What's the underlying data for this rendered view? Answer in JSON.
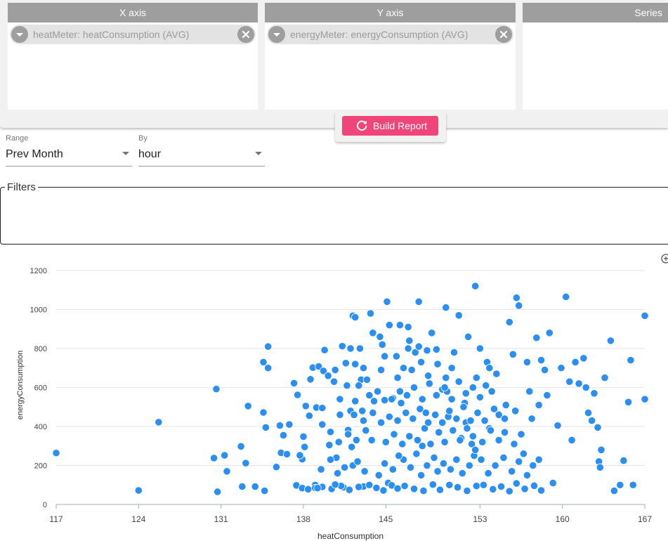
{
  "axes": {
    "x": {
      "title": "X axis",
      "field": "heatMeter: heatConsumption (AVG)"
    },
    "y": {
      "title": "Y axis",
      "field": "energyMeter: energyConsumption (AVG)"
    },
    "series": {
      "title": "Series"
    }
  },
  "build_button": {
    "label": "Build Report",
    "color": "#f0457b",
    "icon": "refresh-icon"
  },
  "range": {
    "label": "Range",
    "value": "Prev Month"
  },
  "by": {
    "label": "By",
    "value": "hour"
  },
  "filters": {
    "label": "Filters"
  },
  "chart_data": {
    "type": "scatter",
    "xlabel": "heatConsumption",
    "ylabel": "energyConsumption",
    "xlim": [
      117,
      167
    ],
    "ylim": [
      0,
      1200
    ],
    "x_ticks": [
      117,
      124,
      131,
      138,
      145,
      153,
      160,
      167
    ],
    "y_ticks": [
      0,
      200,
      400,
      600,
      800,
      1000,
      1200
    ],
    "grid": "horizontal",
    "color": "#2b8ff2",
    "points": [
      [
        117.0,
        264
      ],
      [
        124.0,
        72
      ],
      [
        125.7,
        422
      ],
      [
        130.6,
        592
      ],
      [
        130.4,
        238
      ],
      [
        130.7,
        65
      ],
      [
        131.3,
        252
      ],
      [
        131.5,
        170
      ],
      [
        132.7,
        298
      ],
      [
        132.8,
        92
      ],
      [
        133.1,
        212
      ],
      [
        133.3,
        505
      ],
      [
        133.9,
        92
      ],
      [
        134.6,
        730
      ],
      [
        134.6,
        472
      ],
      [
        134.8,
        395
      ],
      [
        135.0,
        700
      ],
      [
        135.0,
        810
      ],
      [
        134.7,
        70
      ],
      [
        135.7,
        192
      ],
      [
        136.0,
        405
      ],
      [
        136.1,
        265
      ],
      [
        136.3,
        355
      ],
      [
        136.6,
        258
      ],
      [
        136.8,
        410
      ],
      [
        137.2,
        622
      ],
      [
        137.4,
        98
      ],
      [
        137.5,
        562
      ],
      [
        137.9,
        84
      ],
      [
        137.9,
        232
      ],
      [
        137.7,
        252
      ],
      [
        138.1,
        295
      ],
      [
        138.0,
        348
      ],
      [
        138.2,
        505
      ],
      [
        138.4,
        78
      ],
      [
        138.6,
        642
      ],
      [
        138.5,
        455
      ],
      [
        138.8,
        702
      ],
      [
        139.0,
        100
      ],
      [
        139.0,
        85
      ],
      [
        139.1,
        497
      ],
      [
        139.3,
        708
      ],
      [
        139.6,
        495
      ],
      [
        139.6,
        410
      ],
      [
        139.7,
        685
      ],
      [
        139.8,
        792
      ],
      [
        140.1,
        660
      ],
      [
        140.2,
        305
      ],
      [
        140.3,
        372
      ],
      [
        140.4,
        80
      ],
      [
        140.6,
        630
      ],
      [
        140.7,
        690
      ],
      [
        140.8,
        240
      ],
      [
        141.3,
        812
      ],
      [
        141.1,
        540
      ],
      [
        141.1,
        460
      ],
      [
        141.4,
        88
      ],
      [
        141.6,
        725
      ],
      [
        141.7,
        610
      ],
      [
        141.8,
        382
      ],
      [
        142.0,
        800
      ],
      [
        142.1,
        295
      ],
      [
        142.0,
        480
      ],
      [
        142.2,
        968
      ],
      [
        142.2,
        200
      ],
      [
        142.4,
        960
      ],
      [
        142.4,
        530
      ],
      [
        142.8,
        800
      ],
      [
        142.9,
        640
      ],
      [
        143.0,
        480
      ],
      [
        143.1,
        92
      ],
      [
        143.4,
        640
      ],
      [
        143.7,
        980
      ],
      [
        143.9,
        880
      ],
      [
        144.0,
        530
      ],
      [
        144.5,
        860
      ],
      [
        144.7,
        820
      ],
      [
        144.9,
        535
      ],
      [
        145.1,
        1040
      ],
      [
        145.3,
        920
      ],
      [
        145.6,
        545
      ],
      [
        146.2,
        920
      ],
      [
        146.3,
        520
      ],
      [
        146.9,
        910
      ],
      [
        147.0,
        840
      ],
      [
        147.5,
        780
      ],
      [
        147.8,
        1040
      ],
      [
        148.1,
        300
      ],
      [
        148.4,
        470
      ],
      [
        148.9,
        880
      ],
      [
        149.3,
        795
      ],
      [
        149.8,
        590
      ],
      [
        150.1,
        1010
      ],
      [
        150.2,
        580
      ],
      [
        150.3,
        450
      ],
      [
        150.6,
        700
      ],
      [
        150.8,
        780
      ],
      [
        151.2,
        970
      ],
      [
        151.4,
        340
      ],
      [
        151.7,
        520
      ],
      [
        151.8,
        420
      ],
      [
        152.0,
        860
      ],
      [
        152.3,
        310
      ],
      [
        152.5,
        250
      ],
      [
        152.6,
        280
      ],
      [
        152.6,
        1120
      ],
      [
        153.0,
        800
      ],
      [
        153.6,
        730
      ],
      [
        153.8,
        390
      ],
      [
        154.0,
        580
      ],
      [
        154.4,
        670
      ],
      [
        154.6,
        460
      ],
      [
        155.2,
        510
      ],
      [
        155.5,
        935
      ],
      [
        155.8,
        770
      ],
      [
        156.1,
        1060
      ],
      [
        156.3,
        1020
      ],
      [
        156.7,
        260
      ],
      [
        157.0,
        730
      ],
      [
        157.2,
        580
      ],
      [
        157.4,
        440
      ],
      [
        157.8,
        855
      ],
      [
        158.0,
        510
      ],
      [
        158.2,
        740
      ],
      [
        158.5,
        690
      ],
      [
        158.7,
        560
      ],
      [
        158.9,
        880
      ],
      [
        159.2,
        110
      ],
      [
        159.6,
        405
      ],
      [
        159.9,
        700
      ],
      [
        160.3,
        1065
      ],
      [
        160.6,
        630
      ],
      [
        160.8,
        330
      ],
      [
        161.1,
        730
      ],
      [
        161.4,
        620
      ],
      [
        161.8,
        750
      ],
      [
        162.0,
        600
      ],
      [
        162.2,
        470
      ],
      [
        162.5,
        430
      ],
      [
        162.7,
        570
      ],
      [
        163.0,
        395
      ],
      [
        163.1,
        220
      ],
      [
        163.2,
        190
      ],
      [
        163.3,
        280
      ],
      [
        163.6,
        650
      ],
      [
        164.1,
        840
      ],
      [
        164.4,
        70
      ],
      [
        164.9,
        100
      ],
      [
        165.2,
        225
      ],
      [
        165.6,
        525
      ],
      [
        165.8,
        740
      ],
      [
        166.0,
        100
      ],
      [
        167.0,
        968
      ],
      [
        167.0,
        540
      ],
      [
        145.2,
        110
      ],
      [
        146.6,
        95
      ],
      [
        147.4,
        80
      ],
      [
        148.2,
        70
      ],
      [
        149.0,
        102
      ],
      [
        149.6,
        75
      ],
      [
        150.4,
        100
      ],
      [
        151.1,
        88
      ],
      [
        151.9,
        70
      ],
      [
        152.7,
        95
      ],
      [
        153.3,
        100
      ],
      [
        154.1,
        78
      ],
      [
        154.8,
        92
      ],
      [
        155.5,
        68
      ],
      [
        156.1,
        108
      ],
      [
        156.8,
        80
      ],
      [
        157.6,
        96
      ],
      [
        158.2,
        72
      ],
      [
        143.6,
        100
      ],
      [
        144.2,
        85
      ],
      [
        144.8,
        72
      ],
      [
        145.5,
        98
      ],
      [
        146.0,
        82
      ],
      [
        142.7,
        90
      ],
      [
        141.9,
        75
      ],
      [
        141.2,
        95
      ],
      [
        140.7,
        102
      ],
      [
        139.6,
        90
      ],
      [
        139.2,
        84
      ],
      [
        146.5,
        230
      ],
      [
        147.1,
        190
      ],
      [
        147.6,
        260
      ],
      [
        148.0,
        150
      ],
      [
        148.5,
        200
      ],
      [
        149.1,
        240
      ],
      [
        149.4,
        170
      ],
      [
        149.9,
        210
      ],
      [
        150.5,
        180
      ],
      [
        151.0,
        230
      ],
      [
        151.5,
        160
      ],
      [
        152.1,
        200
      ],
      [
        153.1,
        230
      ],
      [
        153.7,
        160
      ],
      [
        154.3,
        200
      ],
      [
        155.0,
        240
      ],
      [
        155.7,
        170
      ],
      [
        156.3,
        220
      ],
      [
        157.0,
        150
      ],
      [
        157.5,
        200
      ],
      [
        158.0,
        230
      ],
      [
        144.4,
        150
      ],
      [
        144.9,
        210
      ],
      [
        145.6,
        180
      ],
      [
        146.1,
        250
      ],
      [
        143.2,
        170
      ],
      [
        142.6,
        220
      ],
      [
        141.5,
        190
      ],
      [
        140.9,
        160
      ],
      [
        140.3,
        230
      ],
      [
        139.5,
        180
      ],
      [
        145.0,
        320
      ],
      [
        145.7,
        360
      ],
      [
        146.4,
        310
      ],
      [
        147.0,
        350
      ],
      [
        147.7,
        330
      ],
      [
        148.3,
        390
      ],
      [
        148.8,
        310
      ],
      [
        149.5,
        370
      ],
      [
        150.0,
        320
      ],
      [
        150.7,
        380
      ],
      [
        151.3,
        330
      ],
      [
        151.9,
        390
      ],
      [
        152.4,
        350
      ],
      [
        153.2,
        320
      ],
      [
        153.9,
        380
      ],
      [
        154.6,
        330
      ],
      [
        155.1,
        370
      ],
      [
        155.9,
        310
      ],
      [
        156.5,
        360
      ],
      [
        143.8,
        330
      ],
      [
        143.3,
        380
      ],
      [
        142.5,
        330
      ],
      [
        141.8,
        360
      ],
      [
        141.0,
        320
      ],
      [
        144.6,
        420
      ],
      [
        145.3,
        450
      ],
      [
        146.0,
        430
      ],
      [
        146.7,
        470
      ],
      [
        147.3,
        440
      ],
      [
        147.9,
        490
      ],
      [
        148.6,
        420
      ],
      [
        149.2,
        460
      ],
      [
        149.8,
        420
      ],
      [
        150.4,
        480
      ],
      [
        151.0,
        440
      ],
      [
        151.6,
        500
      ],
      [
        152.2,
        430
      ],
      [
        152.8,
        470
      ],
      [
        153.4,
        430
      ],
      [
        154.2,
        490
      ],
      [
        155.1,
        440
      ],
      [
        156.0,
        480
      ],
      [
        143.9,
        470
      ],
      [
        143.1,
        430
      ],
      [
        142.3,
        460
      ],
      [
        145.5,
        540
      ],
      [
        146.2,
        580
      ],
      [
        146.8,
        560
      ],
      [
        147.4,
        600
      ],
      [
        148.1,
        540
      ],
      [
        148.7,
        620
      ],
      [
        149.3,
        560
      ],
      [
        150.0,
        600
      ],
      [
        150.6,
        540
      ],
      [
        151.2,
        630
      ],
      [
        151.8,
        570
      ],
      [
        152.4,
        600
      ],
      [
        153.0,
        550
      ],
      [
        153.5,
        610
      ],
      [
        144.3,
        580
      ],
      [
        143.6,
        560
      ],
      [
        142.7,
        610
      ],
      [
        146.0,
        650
      ],
      [
        146.5,
        700
      ],
      [
        147.2,
        690
      ],
      [
        148.0,
        730
      ],
      [
        148.6,
        660
      ],
      [
        149.4,
        720
      ],
      [
        150.1,
        650
      ],
      [
        152.7,
        650
      ],
      [
        153.8,
        700
      ],
      [
        144.6,
        690
      ],
      [
        143.1,
        700
      ],
      [
        142.4,
        720
      ],
      [
        146.9,
        800
      ],
      [
        147.8,
        810
      ],
      [
        148.5,
        790
      ],
      [
        145.9,
        760
      ],
      [
        144.9,
        760
      ]
    ]
  }
}
